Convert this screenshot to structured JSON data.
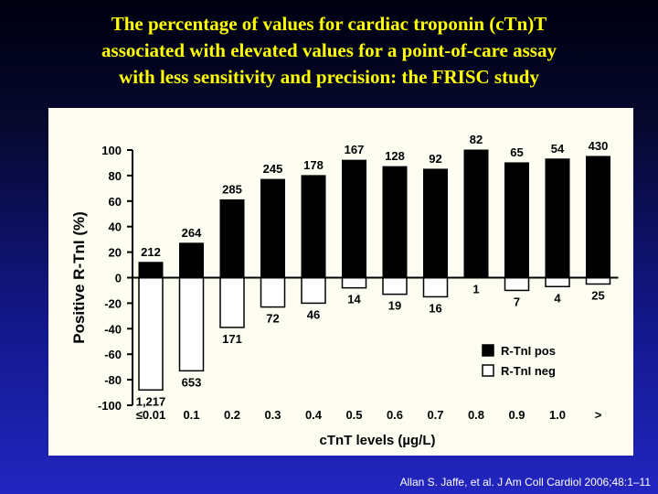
{
  "slide": {
    "title_lines": [
      "The percentage of values for cardiac troponin (cTn)T",
      "associated with elevated values for a point-of-care assay",
      "with less sensitivity and precision: the FRISC study"
    ],
    "citation": "Allan S. Jaffe, et al. J Am Coll Cardiol 2006;48:1–11"
  },
  "colors": {
    "title": "#ffff00",
    "pos_bar": "#000000",
    "neg_bar": "#ffffff",
    "panel_bg": "#fdfdf2"
  },
  "chart_data": {
    "type": "bar",
    "xlabel": "cTnT levels (µg/L)",
    "ylabel": "Positive R-TnI (%)",
    "ylim": [
      -100,
      100
    ],
    "yticks": [
      100,
      80,
      60,
      40,
      20,
      0,
      -20,
      -40,
      -60,
      -80,
      -100
    ],
    "categories": [
      "≤0.01",
      "0.1",
      "0.2",
      "0.3",
      "0.4",
      "0.5",
      "0.6",
      "0.7",
      "0.8",
      "0.9",
      "1.0",
      ">"
    ],
    "legend_position": "bottom-right",
    "series": [
      {
        "name": "R-TnI pos",
        "values": [
          12,
          27,
          61,
          77,
          80,
          92,
          87,
          85,
          100,
          90,
          93,
          95
        ],
        "labels": [
          "212",
          "264",
          "285",
          "245",
          "178",
          "167",
          "128",
          "92",
          "82",
          "65",
          "54",
          "430"
        ]
      },
      {
        "name": "R-TnI neg",
        "values": [
          -88,
          -73,
          -39,
          -23,
          -20,
          -8,
          -13,
          -15,
          0,
          -10,
          -7,
          -5
        ],
        "labels": [
          "1,217",
          "653",
          "171",
          "72",
          "46",
          "14",
          "19",
          "16",
          "1",
          "7",
          "4",
          "25"
        ]
      }
    ]
  }
}
